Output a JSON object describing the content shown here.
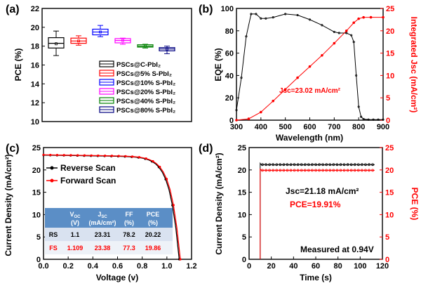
{
  "chart_data": [
    {
      "panel": "(a)",
      "type": "box",
      "ylabel": "PCE (%)",
      "ylim": [
        10,
        22
      ],
      "yticks": [
        "10",
        "12",
        "14",
        "16",
        "18",
        "20",
        "22"
      ],
      "series": [
        {
          "name": "PSCs@C-PbI₂",
          "color": "#000000",
          "min": 17.0,
          "q1": 17.8,
          "median": 18.3,
          "q3": 18.9,
          "max": 19.6,
          "mean": 18.25
        },
        {
          "name": "PSCs@5% S-PbI₂",
          "color": "#ff0000",
          "min": 18.1,
          "q1": 18.3,
          "median": 18.55,
          "q3": 18.85,
          "max": 19.1,
          "mean": 18.55
        },
        {
          "name": "PSCs@10% S-PbI₂",
          "color": "#0000ff",
          "min": 19.0,
          "q1": 19.2,
          "median": 19.5,
          "q3": 19.8,
          "max": 20.2,
          "mean": 19.5
        },
        {
          "name": "PSCs@20% S-PbI₂",
          "color": "#ff00ff",
          "min": 18.2,
          "q1": 18.35,
          "median": 18.6,
          "q3": 18.8,
          "max": 18.85,
          "mean": 18.6
        },
        {
          "name": "PSCs@40% S-PbI₂",
          "color": "#008000",
          "min": 17.8,
          "q1": 17.9,
          "median": 18.0,
          "q3": 18.15,
          "max": 18.2,
          "mean": 18.0
        },
        {
          "name": "PSCs@80% S-PbI₂",
          "color": "#000080",
          "min": 17.2,
          "q1": 17.5,
          "median": 17.7,
          "q3": 17.85,
          "max": 18.0,
          "mean": 17.7
        }
      ]
    },
    {
      "panel": "(b)",
      "type": "line",
      "xlabel": "Wavelength (nm)",
      "ylabel": "EQE (%)",
      "y2label": "Integrated Jsc (mA/cm²)",
      "xlim": [
        300,
        900
      ],
      "ylim": [
        0,
        100
      ],
      "y2lim": [
        0,
        25
      ],
      "xticks": [
        "300",
        "400",
        "500",
        "600",
        "700",
        "800",
        "900"
      ],
      "yticks": [
        "0",
        "20",
        "40",
        "60",
        "80",
        "100"
      ],
      "y2ticks": [
        "0",
        "5",
        "10",
        "15",
        "20",
        "25"
      ],
      "annotation": "Jsc=23.02 mA/cm²",
      "series": [
        {
          "name": "EQE",
          "color": "#000000",
          "x": [
            300,
            320,
            340,
            360,
            380,
            400,
            420,
            450,
            500,
            550,
            600,
            650,
            700,
            720,
            750,
            770,
            780,
            790,
            800,
            810,
            820,
            840,
            860,
            880,
            900
          ],
          "y": [
            9,
            38,
            75,
            95,
            95,
            91,
            91,
            92,
            95,
            94,
            90,
            85,
            79,
            78,
            78,
            76,
            70,
            40,
            12,
            3,
            1,
            0.5,
            0.5,
            0.5,
            0.5
          ]
        },
        {
          "name": "Integrated Jsc",
          "color": "#ff0000",
          "x": [
            300,
            350,
            400,
            450,
            500,
            550,
            600,
            650,
            700,
            750,
            780,
            800,
            820,
            850,
            900
          ],
          "y": [
            0,
            0.3,
            1.8,
            4.3,
            6.9,
            9.5,
            12.0,
            14.5,
            17.2,
            20.0,
            21.8,
            22.7,
            23.0,
            23.02,
            23.02
          ]
        }
      ]
    },
    {
      "panel": "(c)",
      "type": "line",
      "xlabel": "Voltage (v)",
      "ylabel": "Current Density (mA/cm²)",
      "xlim": [
        0.0,
        1.2
      ],
      "ylim": [
        0,
        25
      ],
      "xticks": [
        "0.0",
        "0.2",
        "0.4",
        "0.6",
        "0.8",
        "1.0",
        "1.2"
      ],
      "yticks": [
        "0",
        "5",
        "10",
        "15",
        "20",
        "25"
      ],
      "series": [
        {
          "name": "Reverse Scan",
          "color": "#000000",
          "jsc": 23.31,
          "voc": 1.1
        },
        {
          "name": "Forward Scan",
          "color": "#ff0000",
          "jsc": 23.38,
          "voc": 1.109
        }
      ],
      "table": {
        "headers": [
          [
            "V",
            "OC",
            "(V)"
          ],
          [
            "J",
            "SC",
            "(mA/cm²)"
          ],
          [
            "FF",
            "",
            "(%)"
          ],
          [
            "PCE",
            "",
            "(%)"
          ]
        ],
        "rows": [
          {
            "label": "RS",
            "values": [
              "1.1",
              "23.31",
              "78.2",
              "20.22"
            ],
            "color": "#000000"
          },
          {
            "label": "FS",
            "values": [
              "1.109",
              "23.38",
              "77.3",
              "19.86"
            ],
            "color": "#ff0000"
          }
        ]
      }
    },
    {
      "panel": "(d)",
      "type": "line",
      "xlabel": "Time (s)",
      "ylabel": "Current Density (mA/cm²)",
      "y2label": "PCE (%)",
      "xlim": [
        0,
        120
      ],
      "ylim": [
        0,
        25
      ],
      "y2lim": [
        0,
        25
      ],
      "xticks": [
        "0",
        "20",
        "40",
        "60",
        "80",
        "100",
        "120"
      ],
      "yticks": [
        "0",
        "5",
        "10",
        "15",
        "20",
        "25"
      ],
      "y2ticks": [
        "0",
        "5",
        "10",
        "15",
        "20",
        "25"
      ],
      "annotations": [
        "Jsc=21.18 mA/cm²",
        "PCE=19.91%",
        "Measured at 0.94V"
      ],
      "series": [
        {
          "name": "Current Density",
          "color": "#000000",
          "start": 10,
          "end": 113,
          "value": 21.18,
          "initial": 21.5
        },
        {
          "name": "PCE",
          "color": "#ff0000",
          "start": 10,
          "end": 113,
          "value": 19.91,
          "initial": 20.2
        }
      ]
    }
  ]
}
